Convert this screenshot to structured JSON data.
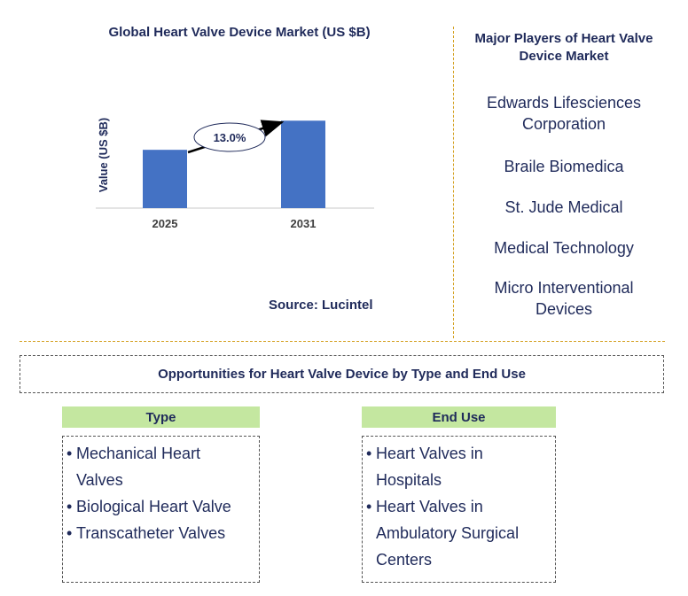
{
  "chart_data": {
    "type": "bar",
    "title": "Global Heart Valve Device Market (US $B)",
    "ylabel": "Value (US $B)",
    "categories": [
      "2025",
      "2031"
    ],
    "values": [
      1.0,
      1.5
    ],
    "ylim": [
      0,
      1.58
    ],
    "annotation": "13.0%",
    "bar_color": "#4472c4"
  },
  "source": "Source: Lucintel",
  "players": {
    "title_line1": "Major Players of Heart Valve",
    "title_line2": "Device Market",
    "items": [
      {
        "line1": "Edwards Lifesciences",
        "line2": "Corporation"
      },
      {
        "line1": "Braile Biomedica",
        "line2": ""
      },
      {
        "line1": "St. Jude Medical",
        "line2": ""
      },
      {
        "line1": "Medical Technology",
        "line2": ""
      },
      {
        "line1": "Micro Interventional",
        "line2": "Devices"
      }
    ]
  },
  "opportunities": {
    "title": "Opportunities for Heart Valve Device by Type and End Use",
    "type": {
      "header": "Type",
      "items": [
        {
          "line1": "Mechanical Heart",
          "line2": "Valves"
        },
        {
          "line1": "Biological Heart Valve",
          "line2": ""
        },
        {
          "line1": "Transcatheter Valves",
          "line2": ""
        }
      ]
    },
    "end_use": {
      "header": "End Use",
      "items": [
        {
          "line1": "Heart Valves in",
          "line2": "Hospitals"
        },
        {
          "line1": "Heart Valves in",
          "line2": "Ambulatory Surgical"
        },
        {
          "line1": "",
          "line2": "Centers"
        }
      ]
    }
  }
}
